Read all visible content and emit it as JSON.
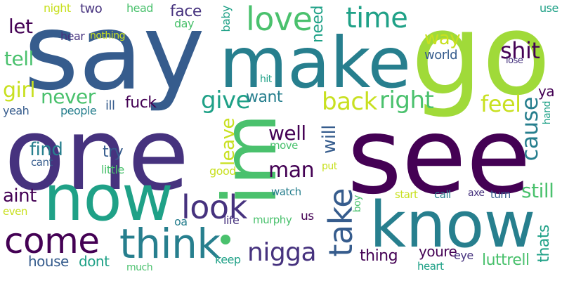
{
  "words": {
    "say": "say",
    "go": "go",
    "one": "one",
    "see": "see",
    "im": "im",
    "make": "make",
    "know": "know",
    "now": "now",
    "think": "think",
    "come": "come",
    "love": "love",
    "time": "time",
    "take": "take",
    "look": "look",
    "nigga": "nigga",
    "back": "back",
    "right": "right",
    "shit": "shit",
    "give": "give",
    "man": "man",
    "cause": "cause",
    "feel": "feel",
    "girl": "girl",
    "never": "never",
    "tell": "tell",
    "let": "let",
    "way": "way",
    "need": "need",
    "leave": "leave",
    "will": "will",
    "well": "well",
    "find": "find",
    "still": "still",
    "aint": "aint",
    "try": "try",
    "want": "want",
    "fuck": "fuck",
    "luttrell": "luttrell",
    "face": "face",
    "thing": "thing",
    "youre": "youre",
    "thats": "thats",
    "dont": "dont",
    "house": "house",
    "ya": "ya",
    "two": "two",
    "world": "world",
    "head": "head",
    "night": "night",
    "hear": "hear",
    "nothing": "nothing",
    "day": "day",
    "baby": "baby",
    "use": "use",
    "lose": "lose",
    "hit": "hit",
    "people": "people",
    "yeah": "yeah",
    "ill": "ill",
    "hand": "hand",
    "cant": "cant",
    "move": "move",
    "little": "little",
    "good": "good",
    "put": "put",
    "boy": "boy",
    "start": "start",
    "call": "call",
    "axe": "axe",
    "turn": "turn",
    "watch": "watch",
    "even": "even",
    "oa": "oa",
    "life": "life",
    "murphy": "murphy",
    "us": "us",
    "keep": "keep",
    "eye": "eye",
    "heart": "heart",
    "much": "much"
  },
  "palette": {
    "dark_purple": "#440154",
    "indigo": "#46327e",
    "blue": "#365c8d",
    "teal": "#277f8e",
    "green_teal": "#1fa187",
    "green": "#4ac16d",
    "lime": "#a0da39",
    "yellow_green": "#c8e020"
  }
}
